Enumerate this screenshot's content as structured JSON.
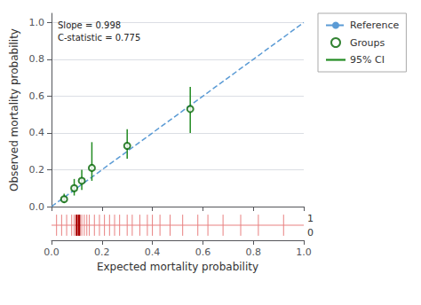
{
  "chart_data": {
    "type": "scatter",
    "xlabel": "Expected mortality probability",
    "ylabel": "Observed mortality probability",
    "annotation": "Slope = 0.998\nC-statistic = 0.775",
    "xlim": [
      0,
      1.0
    ],
    "ylim": [
      0,
      1.05
    ],
    "xticks": [
      {
        "value": 0,
        "label": "0.0"
      },
      0.2,
      0.4,
      0.6,
      0.8,
      {
        "value": 1.0,
        "label": "1.0"
      }
    ],
    "yticks": [
      {
        "value": 0,
        "label": "0.0"
      },
      0.2,
      0.4,
      0.6,
      0.8,
      {
        "value": 1.0,
        "label": "1.0"
      }
    ],
    "grid": true,
    "legend": "right",
    "series": [
      {
        "name": "Reference",
        "type": "line",
        "color": "#5B9BD5",
        "line_style": "dashed",
        "x": [
          0,
          1
        ],
        "values": [
          0,
          1
        ]
      },
      {
        "name": "Groups",
        "type": "scatter",
        "color": "#006400",
        "marker": "circle-open",
        "x": [
          0.05,
          0.09,
          0.12,
          0.16,
          0.3,
          0.55
        ],
        "values": [
          0.04,
          0.1,
          0.14,
          0.21,
          0.33,
          0.53
        ]
      },
      {
        "name": "95% CI",
        "type": "errorbar",
        "color": "#228B22",
        "line_style": "solid",
        "x": [
          0.05,
          0.09,
          0.12,
          0.16,
          0.3,
          0.55
        ],
        "low": [
          0.02,
          0.06,
          0.09,
          0.14,
          0.26,
          0.4
        ],
        "high": [
          0.07,
          0.15,
          0.2,
          0.35,
          0.42,
          0.65
        ]
      }
    ],
    "rug": {
      "x": [
        0.02,
        0.04,
        0.06,
        0.08,
        0.09,
        0.1,
        0.11,
        0.12,
        0.13,
        0.14,
        0.15,
        0.17,
        0.19,
        0.21,
        0.23,
        0.25,
        0.27,
        0.3,
        0.32,
        0.35,
        0.38,
        0.4,
        0.43,
        0.47,
        0.52,
        0.58,
        0.62,
        0.68,
        0.75,
        0.82,
        0.92
      ],
      "color": "#E88080",
      "thick_x": [
        0.1,
        0.11
      ],
      "thick_color": "#AA0000",
      "upper_label": "1",
      "lower_label": "0"
    }
  }
}
